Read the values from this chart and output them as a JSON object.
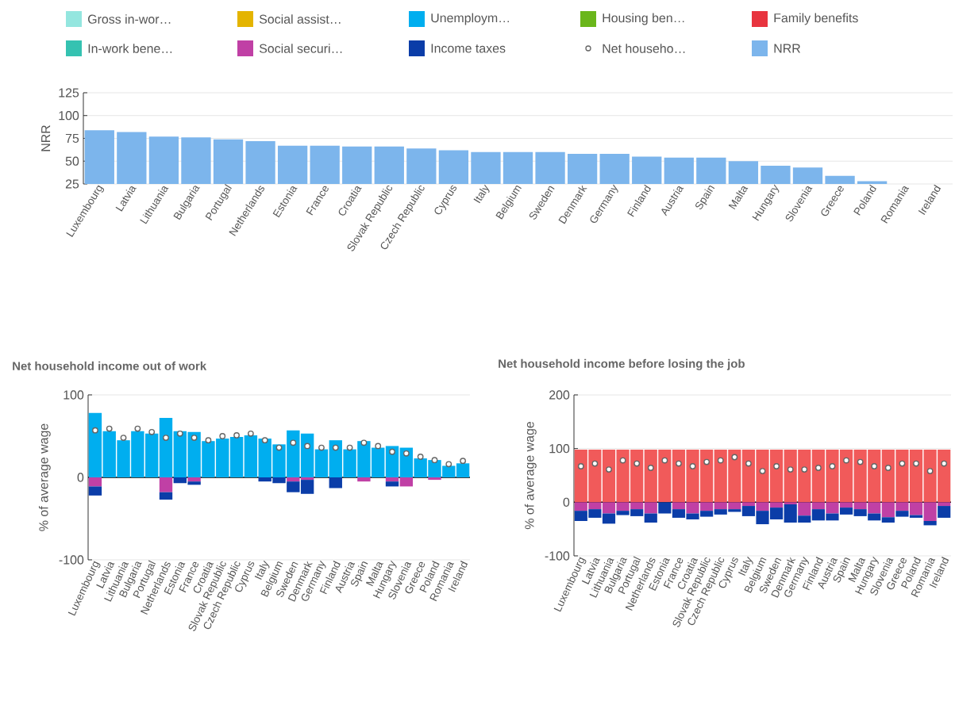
{
  "chart_data": [
    {
      "type": "bar",
      "ylabel": "NRR",
      "ylim": [
        25,
        125
      ],
      "yticks": [
        25,
        50,
        75,
        100,
        125
      ],
      "grid": "y",
      "legend": "top",
      "categories": [
        "Luxembourg",
        "Latvia",
        "Lithuania",
        "Bulgaria",
        "Portugal",
        "Netherlands",
        "Estonia",
        "France",
        "Croatia",
        "Slovak Republic",
        "Czech Republic",
        "Cyprus",
        "Italy",
        "Belgium",
        "Sweden",
        "Denmark",
        "Germany",
        "Finland",
        "Austria",
        "Spain",
        "Malta",
        "Hungary",
        "Slovenia",
        "Greece",
        "Poland",
        "Romania",
        "Ireland"
      ],
      "series": [
        {
          "name": "Gross in-wor…",
          "color": "#94e6df",
          "values": [
            null,
            null,
            null,
            null,
            null,
            null,
            null,
            null,
            null,
            null,
            null,
            null,
            null,
            null,
            null,
            null,
            null,
            null,
            null,
            null,
            null,
            null,
            null,
            null,
            null,
            null,
            null
          ]
        },
        {
          "name": "In-work bene…",
          "color": "#35c2b1",
          "values": [
            null,
            null,
            null,
            null,
            null,
            null,
            null,
            null,
            null,
            null,
            null,
            null,
            null,
            null,
            null,
            null,
            null,
            null,
            null,
            null,
            null,
            null,
            null,
            null,
            null,
            null,
            null
          ]
        },
        {
          "name": "Social assist…",
          "color": "#e4b400",
          "values": [
            null,
            null,
            null,
            null,
            null,
            null,
            null,
            null,
            null,
            null,
            null,
            null,
            null,
            null,
            null,
            null,
            null,
            null,
            null,
            null,
            null,
            null,
            null,
            null,
            null,
            null,
            null
          ]
        },
        {
          "name": "Social securi…",
          "color": "#c040a5",
          "values": [
            null,
            null,
            null,
            null,
            null,
            null,
            null,
            null,
            null,
            null,
            null,
            null,
            null,
            null,
            null,
            null,
            null,
            null,
            null,
            null,
            null,
            null,
            null,
            null,
            null,
            null,
            null
          ]
        },
        {
          "name": "Unemploym…",
          "color": "#00aeef",
          "values": [
            null,
            null,
            null,
            null,
            null,
            null,
            null,
            null,
            null,
            null,
            null,
            null,
            null,
            null,
            null,
            null,
            null,
            null,
            null,
            null,
            null,
            null,
            null,
            null,
            null,
            null,
            null
          ]
        },
        {
          "name": "Income taxes",
          "color": "#0b3da8",
          "values": [
            null,
            null,
            null,
            null,
            null,
            null,
            null,
            null,
            null,
            null,
            null,
            null,
            null,
            null,
            null,
            null,
            null,
            null,
            null,
            null,
            null,
            null,
            null,
            null,
            null,
            null,
            null
          ]
        },
        {
          "name": "Housing ben…",
          "color": "#6ab61b",
          "values": [
            null,
            null,
            null,
            null,
            null,
            null,
            null,
            null,
            null,
            null,
            null,
            null,
            null,
            null,
            null,
            null,
            null,
            null,
            null,
            null,
            null,
            null,
            null,
            null,
            null,
            null,
            null
          ]
        },
        {
          "name": "Net househo…",
          "type": "scatter",
          "marker": "circle",
          "color": "#666666",
          "values": [
            null,
            null,
            null,
            null,
            null,
            null,
            null,
            null,
            null,
            null,
            null,
            null,
            null,
            null,
            null,
            null,
            null,
            null,
            null,
            null,
            null,
            null,
            null,
            null,
            null,
            null,
            null
          ]
        },
        {
          "name": "Family benefits",
          "color": "#e8343f",
          "values": [
            null,
            null,
            null,
            null,
            null,
            null,
            null,
            null,
            null,
            null,
            null,
            null,
            null,
            null,
            null,
            null,
            null,
            null,
            null,
            null,
            null,
            null,
            null,
            null,
            null,
            null,
            null
          ]
        },
        {
          "name": "NRR",
          "color": "#7cb5ec",
          "values": [
            84,
            82,
            77,
            76,
            74,
            72,
            67,
            67,
            66,
            66,
            64,
            62,
            60,
            60,
            60,
            58,
            58,
            55,
            54,
            54,
            50,
            45,
            43,
            34,
            28,
            null,
            null
          ]
        }
      ]
    },
    {
      "type": "bar",
      "stacked": true,
      "title": "Net household income out of work",
      "ylabel": "% of average wage",
      "ylim": [
        -100,
        100
      ],
      "yticks": [
        -100,
        0,
        100
      ],
      "grid": "y",
      "ref_lines": [
        {
          "axis": "y",
          "value": 0,
          "color": "#000000"
        }
      ],
      "categories": [
        "Luxembourg",
        "Latvia",
        "Lithuania",
        "Bulgaria",
        "Portugal",
        "Netherlands",
        "Estonia",
        "France",
        "Croatia",
        "Slovak Republic",
        "Czech Republic",
        "Cyprus",
        "Italy",
        "Belgium",
        "Sweden",
        "Denmark",
        "Germany",
        "Finland",
        "Austria",
        "Spain",
        "Malta",
        "Hungary",
        "Slovenia",
        "Greece",
        "Poland",
        "Romania",
        "Ireland"
      ],
      "series": [
        {
          "color": "#00aeef",
          "values": [
            78,
            56,
            45,
            56,
            53,
            72,
            56,
            55,
            44,
            47,
            49,
            51,
            47,
            40,
            57,
            53,
            34,
            45,
            34,
            44,
            36,
            38,
            36,
            23,
            21,
            14,
            17
          ]
        },
        {
          "color": "#c040a5",
          "values": [
            -11,
            null,
            null,
            null,
            null,
            -18,
            null,
            -5,
            null,
            null,
            null,
            null,
            null,
            null,
            -5,
            -3,
            null,
            null,
            null,
            -5,
            null,
            -5,
            -11,
            null,
            -3,
            null,
            null
          ]
        },
        {
          "color": "#0b3da8",
          "values": [
            -11,
            null,
            null,
            null,
            null,
            -9,
            -7,
            -4,
            null,
            null,
            null,
            null,
            -5,
            -7,
            -13,
            -17,
            null,
            -13,
            null,
            null,
            null,
            -6,
            null,
            null,
            null,
            null,
            null
          ]
        },
        {
          "type": "scatter",
          "marker": "circle",
          "color": "#666666",
          "values": [
            57,
            59,
            48,
            59,
            55,
            48,
            53,
            48,
            45,
            50,
            51,
            53,
            45,
            36,
            42,
            38,
            36,
            36,
            36,
            42,
            38,
            31,
            29,
            25,
            21,
            16,
            20
          ]
        }
      ]
    },
    {
      "type": "bar",
      "stacked": true,
      "title": "Net household income before losing the job",
      "ylabel": "% of average wage",
      "ylim": [
        -100,
        200
      ],
      "yticks": [
        -100,
        0,
        100,
        200
      ],
      "grid": "y",
      "ref_lines": [
        {
          "axis": "y",
          "value": 0,
          "color": "#000000"
        }
      ],
      "categories": [
        "Luxembourg",
        "Latvia",
        "Lithuania",
        "Bulgaria",
        "Portugal",
        "Netherlands",
        "Estonia",
        "France",
        "Croatia",
        "Slovak Republic",
        "Czech Republic",
        "Cyprus",
        "Italy",
        "Belgium",
        "Sweden",
        "Denmark",
        "Germany",
        "Finland",
        "Austria",
        "Spain",
        "Malta",
        "Hungary",
        "Slovenia",
        "Greece",
        "Poland",
        "Romania",
        "Ireland"
      ],
      "series": [
        {
          "color": "#f15a5a",
          "values": [
            98,
            98,
            98,
            98,
            98,
            98,
            98,
            98,
            98,
            98,
            98,
            98,
            98,
            98,
            98,
            98,
            98,
            98,
            98,
            98,
            98,
            98,
            98,
            98,
            98,
            98,
            98
          ]
        },
        {
          "color": "#c040a5",
          "values": [
            -16,
            -13,
            -21,
            -16,
            -13,
            -21,
            null,
            -13,
            -21,
            -16,
            -13,
            -13,
            -7,
            -16,
            -10,
            -4,
            -25,
            -13,
            -21,
            -10,
            -13,
            -21,
            -28,
            -16,
            -24,
            -35,
            -7
          ]
        },
        {
          "color": "#0b3da8",
          "values": [
            -19,
            -16,
            -19,
            -8,
            -13,
            -17,
            -21,
            -16,
            -11,
            -11,
            -10,
            -5,
            -19,
            -25,
            -22,
            -34,
            -13,
            -21,
            -13,
            -13,
            -13,
            -13,
            -10,
            -11,
            -5,
            -8,
            -22
          ]
        },
        {
          "type": "scatter",
          "marker": "circle",
          "color": "#666666",
          "values": [
            67,
            72,
            61,
            78,
            72,
            64,
            78,
            72,
            67,
            75,
            78,
            84,
            72,
            58,
            67,
            61,
            61,
            64,
            67,
            78,
            75,
            67,
            64,
            72,
            72,
            58,
            72
          ]
        }
      ]
    }
  ]
}
